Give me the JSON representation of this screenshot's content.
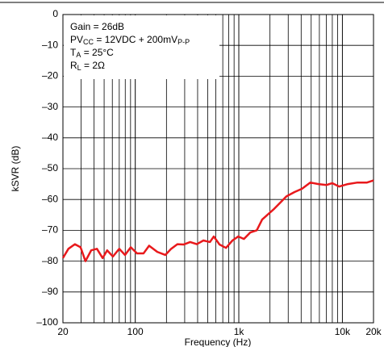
{
  "chart_data": {
    "type": "line",
    "xlabel": "Frequency (Hz)",
    "ylabel": "kSVR (dB)",
    "annotation": [
      [
        "Gain = 26dB"
      ],
      [
        "PV",
        "CC",
        " = 12VDC + 200mV",
        "P-P"
      ],
      [
        "T",
        "A",
        " = 25°C"
      ],
      [
        "R",
        "L",
        " = 2Ω"
      ]
    ],
    "xscale": "log",
    "grid": true,
    "xlim": [
      20,
      20000
    ],
    "ylim": [
      -100,
      0
    ],
    "xticks": [
      20,
      100,
      {
        "value": 1000,
        "label": "1k"
      },
      {
        "value": 10000,
        "label": "10k"
      },
      {
        "value": 20000,
        "label": "20k"
      }
    ],
    "yticks": [
      0,
      {
        "value": -10,
        "label": "–10"
      },
      {
        "value": -20,
        "label": "–20"
      },
      {
        "value": -30,
        "label": "–30"
      },
      {
        "value": -40,
        "label": "–40"
      },
      {
        "value": -50,
        "label": "–50"
      },
      {
        "value": -60,
        "label": "–60"
      },
      {
        "value": -70,
        "label": "–70"
      },
      {
        "value": -80,
        "label": "–80"
      },
      {
        "value": -90,
        "label": "–90"
      },
      {
        "value": -100,
        "label": "–100"
      }
    ],
    "x": [
      20,
      22.6,
      26.1,
      29.6,
      33,
      37.5,
      42.6,
      48.4,
      53.5,
      60.8,
      70,
      79.6,
      90.4,
      104,
      120,
      136,
      163,
      195,
      222,
      255,
      294,
      339,
      393,
      455,
      526,
      573,
      651,
      752,
      868,
      987,
      1120,
      1290,
      1490,
      1680,
      2200,
      2880,
      3450,
      4080,
      4900,
      5880,
      7010,
      8000,
      9300,
      11300,
      14000,
      17300,
      20000
    ],
    "series": [
      {
        "color": "#e8191c",
        "values": [
          -79,
          -76,
          -74.5,
          -75.5,
          -80,
          -76.5,
          -76,
          -79,
          -76.5,
          -78.5,
          -76,
          -78,
          -75.5,
          -77.5,
          -77.5,
          -75,
          -77,
          -78,
          -76,
          -74.5,
          -74.6,
          -73.8,
          -74.5,
          -73.3,
          -73.8,
          -72,
          -74.6,
          -75.7,
          -73.3,
          -72,
          -72.8,
          -70.7,
          -70,
          -66.5,
          -63,
          -59,
          -57.6,
          -56.5,
          -54.5,
          -55,
          -55.3,
          -54.7,
          -55.8,
          -55,
          -54.5,
          -54.5,
          -53.8
        ]
      }
    ]
  }
}
